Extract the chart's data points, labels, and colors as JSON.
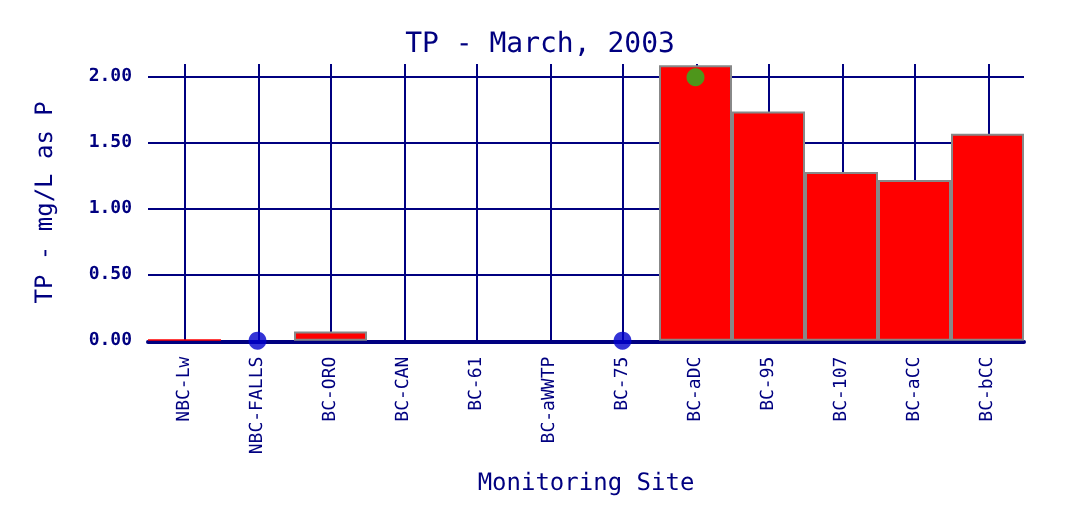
{
  "chart_data": {
    "type": "bar",
    "title": "TP - March, 2003",
    "xlabel": "Monitoring Site",
    "ylabel": "TP - mg/L as P",
    "categories": [
      "NBC-Lw",
      "NBC-FALLS",
      "BC-ORO",
      "BC-CAN",
      "BC-61",
      "BC-aWWTP",
      "BC-75",
      "BC-aDC",
      "BC-95",
      "BC-107",
      "BC-aCC",
      "BC-bCC"
    ],
    "series": [
      {
        "color": "#ff0000",
        "values": [
          0.01,
          null,
          0.07,
          0,
          0,
          0,
          null,
          2.09,
          1.74,
          1.28,
          1.22,
          1.57
        ]
      },
      {
        "type": "scatter",
        "color": "#0000cc",
        "marker": "circle",
        "values": [
          null,
          0,
          null,
          null,
          null,
          null,
          0,
          null,
          null,
          null,
          null,
          null
        ]
      },
      {
        "type": "scatter",
        "color": "#22bb22",
        "marker": "circle",
        "values": [
          null,
          null,
          null,
          null,
          null,
          null,
          null,
          2.0,
          null,
          null,
          null,
          null
        ]
      }
    ],
    "ylim": [
      0,
      2.1
    ],
    "yticks": [
      {
        "value": 0,
        "label": "0.00"
      },
      {
        "value": 0.5,
        "label": "0.50"
      },
      {
        "value": 1,
        "label": "1.00"
      },
      {
        "value": 1.5,
        "label": "1.50"
      },
      {
        "value": 2,
        "label": "2.00"
      }
    ],
    "grid": true
  }
}
